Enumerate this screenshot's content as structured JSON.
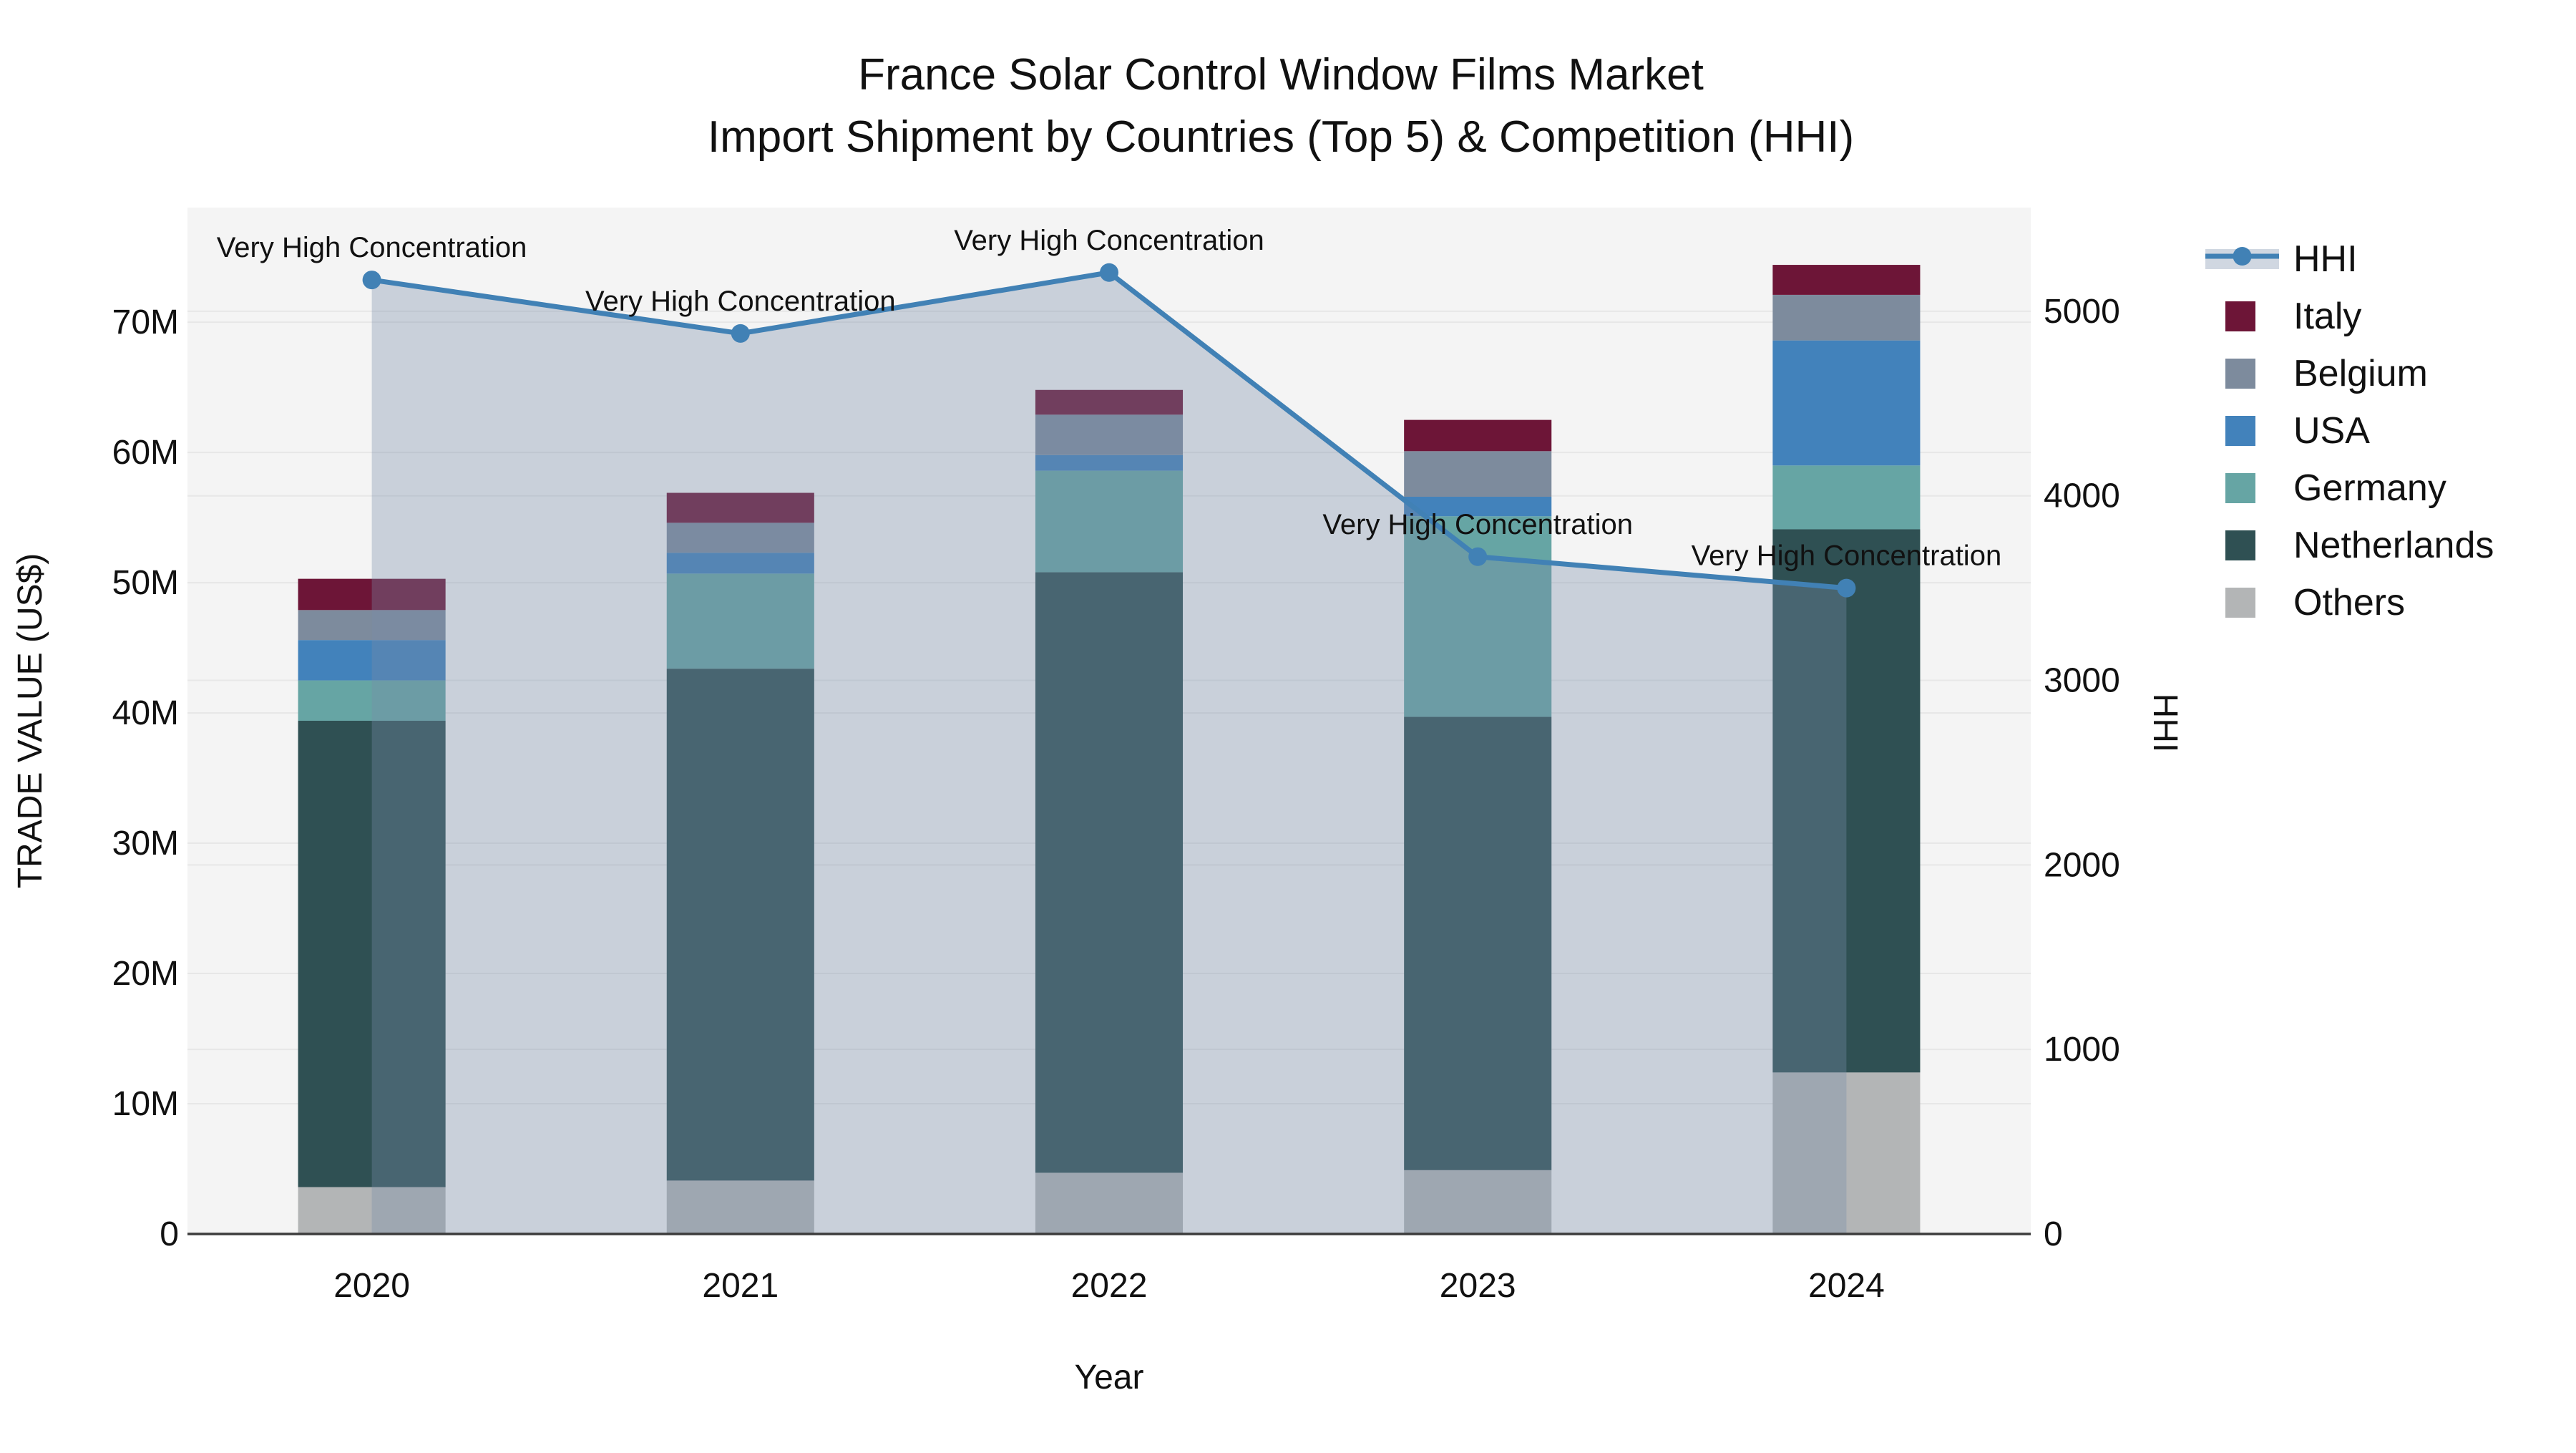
{
  "title": {
    "line1": "France Solar Control Window Films Market",
    "line2": "Import Shipment by Countries (Top 5) & Competition (HHI)"
  },
  "axes": {
    "x": {
      "title": "Year",
      "categories": [
        "2020",
        "2021",
        "2022",
        "2023",
        "2024"
      ]
    },
    "y_left": {
      "title": "TRADE VALUE (US$)",
      "tick_labels": [
        "0",
        "10M",
        "20M",
        "30M",
        "40M",
        "50M",
        "60M",
        "70M"
      ],
      "tick_values": [
        0,
        10,
        20,
        30,
        40,
        50,
        60,
        70
      ],
      "range": [
        0,
        78.8
      ],
      "unit": "M US$"
    },
    "y_right": {
      "title": "HHI",
      "tick_labels": [
        "0",
        "1000",
        "2000",
        "3000",
        "4000",
        "5000"
      ],
      "tick_values": [
        0,
        1000,
        2000,
        3000,
        4000,
        5000
      ],
      "range": [
        0,
        5562
      ]
    }
  },
  "chart_data": {
    "type": "combo",
    "subtype": [
      "stacked-bar",
      "line-area"
    ],
    "categories": [
      "2020",
      "2021",
      "2022",
      "2023",
      "2024"
    ],
    "bar_unit": "M US$ (trade value, millions)",
    "bar_series_bottom_to_top": [
      {
        "name": "Others",
        "color": "#b3b5b6",
        "values": [
          3.6,
          4.1,
          4.7,
          4.9,
          12.4
        ]
      },
      {
        "name": "Netherlands",
        "color": "#2f5053",
        "values": [
          35.8,
          39.3,
          46.1,
          34.8,
          41.7
        ]
      },
      {
        "name": "Germany",
        "color": "#66a5a4",
        "values": [
          3.1,
          7.3,
          7.8,
          15.4,
          4.9
        ]
      },
      {
        "name": "USA",
        "color": "#4282bb",
        "values": [
          3.1,
          1.6,
          1.2,
          1.5,
          9.6
        ]
      },
      {
        "name": "Belgium",
        "color": "#7d8b9d",
        "values": [
          2.3,
          2.3,
          3.1,
          3.5,
          3.5
        ]
      },
      {
        "name": "Italy",
        "color": "#6d1537",
        "values": [
          2.4,
          2.3,
          1.9,
          2.4,
          2.3
        ]
      }
    ],
    "bar_totals": [
      50.3,
      56.9,
      64.8,
      62.5,
      74.4
    ],
    "line_series": {
      "name": "HHI",
      "color": "#4181b5",
      "area_fill_color": "rgba(119,139,168,0.35)",
      "values": [
        5170,
        4880,
        5210,
        3670,
        3500
      ]
    },
    "annotations": [
      {
        "category": "2020",
        "text": "Very High Concentration"
      },
      {
        "category": "2021",
        "text": "Very High Concentration"
      },
      {
        "category": "2022",
        "text": "Very High Concentration"
      },
      {
        "category": "2023",
        "text": "Very High Concentration"
      },
      {
        "category": "2024",
        "text": "Very High Concentration"
      }
    ],
    "legend_position": "right",
    "grid": true
  },
  "legend": {
    "items": [
      {
        "label": "HHI",
        "type": "line",
        "color": "#4181b5",
        "band_color": "rgba(119,139,168,0.35)"
      },
      {
        "label": "Italy",
        "type": "swatch",
        "color": "#6d1537"
      },
      {
        "label": "Belgium",
        "type": "swatch",
        "color": "#7d8b9d"
      },
      {
        "label": "USA",
        "type": "swatch",
        "color": "#4282bb"
      },
      {
        "label": "Germany",
        "type": "swatch",
        "color": "#66a5a4"
      },
      {
        "label": "Netherlands",
        "type": "swatch",
        "color": "#2f5053"
      },
      {
        "label": "Others",
        "type": "swatch",
        "color": "#b3b5b6"
      }
    ]
  },
  "colors": {
    "paper_background": "#ffffff",
    "plot_background": "#f4f4f4",
    "gridline": "#e7e7e7",
    "axis_line": "#3c3c3c",
    "text": "#111111"
  }
}
